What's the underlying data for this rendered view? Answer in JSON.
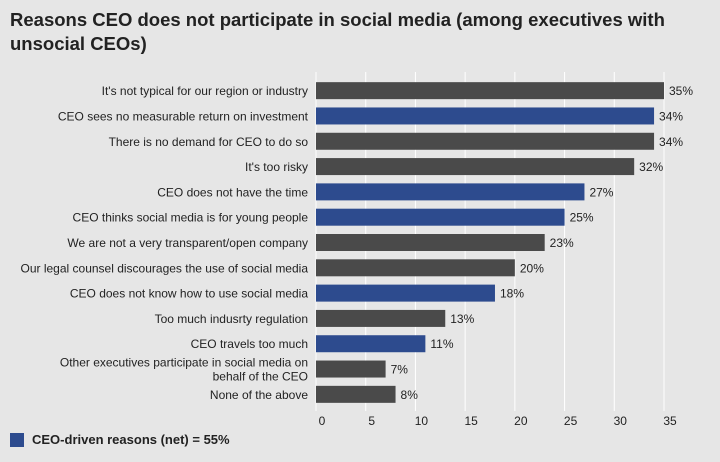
{
  "chart_data": {
    "type": "bar",
    "orientation": "horizontal",
    "title": "Reasons CEO does not participate in social media (among executives with unsocial CEOs)",
    "categories": [
      [
        "It's not typical for our region or industry"
      ],
      [
        "CEO sees no measurable return on investment"
      ],
      [
        "There is no demand for CEO to do so"
      ],
      [
        "It's too risky"
      ],
      [
        "CEO does not have the time"
      ],
      [
        "CEO thinks social media is for young people"
      ],
      [
        "We are not a very transparent/open company"
      ],
      [
        "Our legal counsel discourages the use of social media"
      ],
      [
        "CEO does not know how to use social media"
      ],
      [
        "Too much indusrty regulation"
      ],
      [
        "CEO travels too much"
      ],
      [
        "Other executives participate in social media on",
        "behalf of the CEO"
      ],
      [
        "None of the above"
      ]
    ],
    "values": [
      35,
      34,
      34,
      32,
      27,
      25,
      23,
      20,
      18,
      13,
      11,
      7,
      8
    ],
    "value_labels": [
      "35%",
      "34%",
      "34%",
      "32%",
      "27%",
      "25%",
      "23%",
      "20%",
      "18%",
      "13%",
      "11%",
      "7%",
      "8%"
    ],
    "ceo_driven": [
      false,
      true,
      false,
      false,
      true,
      true,
      false,
      false,
      true,
      false,
      true,
      false,
      false
    ],
    "xlim": [
      0,
      35
    ],
    "xticks": [
      0,
      5,
      10,
      15,
      20,
      25,
      30,
      35
    ],
    "grid": true,
    "colors": {
      "ceo_driven": "#2d4b8e",
      "other": "#4a4a4a",
      "grid": "#ffffff",
      "background": "#e6e6e6"
    },
    "legend": {
      "label": "CEO-driven reasons (net) = 55%",
      "placement": "bottom-left"
    }
  }
}
